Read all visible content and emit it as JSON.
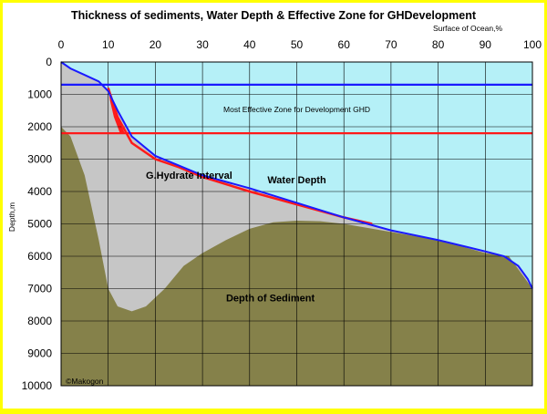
{
  "colors": {
    "background": "#ffff00",
    "plot": "#b5f0f7",
    "sediment": "#85814a",
    "hydrate": "#c6c6c6",
    "water": "#1a1aff",
    "effective": "#ff1a1a"
  },
  "chart_data": {
    "type": "area",
    "title": "Thickness of sediments, Water Depth & Effective Zone for GHDevelopment",
    "xlabel": "Surface of Ocean,%",
    "ylabel": "Depth,m",
    "xlim": [
      0,
      100
    ],
    "ylim": [
      0,
      10000
    ],
    "y_inverted": true,
    "x_ticks": [
      0,
      10,
      20,
      30,
      40,
      50,
      60,
      70,
      80,
      90,
      100
    ],
    "y_ticks": [
      0,
      1000,
      2000,
      3000,
      4000,
      5000,
      6000,
      7000,
      8000,
      9000,
      10000
    ],
    "y_tick_labels": [
      "0",
      "1000",
      "2000",
      "3000",
      "4000",
      "5000",
      "6000",
      "7000",
      "8000",
      "9000",
      "10000"
    ],
    "grid": true,
    "series": [
      {
        "name": "Water Depth",
        "x": [
          0,
          2,
          5,
          8,
          10,
          12,
          15,
          20,
          25,
          30,
          40,
          50,
          60,
          70,
          80,
          90,
          94,
          97,
          99,
          100
        ],
        "y": [
          0,
          200,
          400,
          600,
          900,
          1500,
          2300,
          2900,
          3200,
          3500,
          3900,
          4350,
          4800,
          5200,
          5500,
          5850,
          6000,
          6300,
          6700,
          7000
        ]
      },
      {
        "name": "Depth of Sediment",
        "x": [
          0,
          2,
          5,
          8,
          10,
          12,
          15,
          18,
          22,
          26,
          30,
          35,
          40,
          45,
          50,
          55,
          60,
          70,
          80,
          90,
          95,
          100
        ],
        "y": [
          2000,
          2300,
          3500,
          5500,
          7000,
          7550,
          7700,
          7550,
          7000,
          6300,
          5900,
          5500,
          5150,
          4950,
          4900,
          4920,
          5000,
          5250,
          5500,
          5900,
          6000,
          7000
        ]
      },
      {
        "name": "Most Effective Zone for Development GHD",
        "x": [
          10,
          12,
          15,
          20,
          25,
          30,
          40,
          50,
          60,
          66
        ],
        "y": [
          800,
          1700,
          2500,
          3000,
          3250,
          3550,
          4000,
          4400,
          4800,
          5000
        ]
      }
    ],
    "reference_lines": [
      {
        "y": 700,
        "color": "#1a1aff"
      },
      {
        "y": 2200,
        "color": "#ff1a1a"
      }
    ],
    "annotations": [
      {
        "text": "Most Effective Zone for Development GHD",
        "x": 50,
        "y": 1550
      },
      {
        "text": "G.Hydrate Interval",
        "x": 18,
        "y": 3600
      },
      {
        "text": "Water Depth",
        "x": 50,
        "y": 3750
      },
      {
        "text": "Depth of Sediment",
        "x": 35,
        "y": 7400
      },
      {
        "text": "©Makogon",
        "x": 1,
        "y": 9950
      }
    ]
  }
}
